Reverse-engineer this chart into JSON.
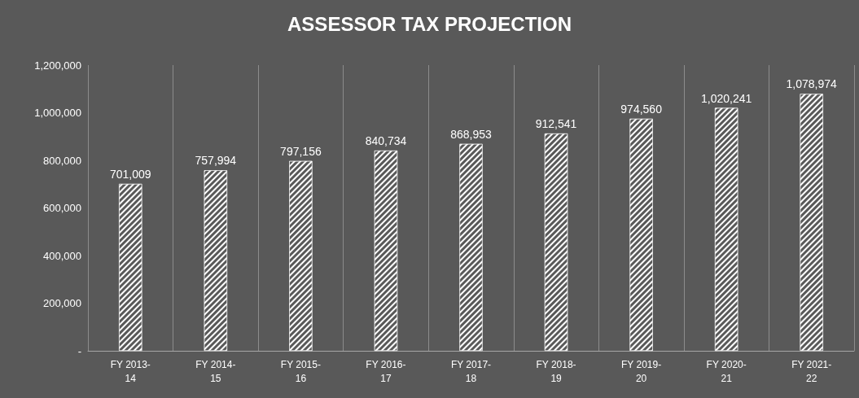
{
  "chart_data": {
    "type": "bar",
    "title": "ASSESSOR TAX PROJECTION",
    "categories": [
      "FY 2013-14",
      "FY 2014-15",
      "FY 2015-16",
      "FY 2016-17",
      "FY 2017-18",
      "FY 2018-19",
      "FY 2019-20",
      "FY 2020-21",
      "FY 2021-22"
    ],
    "values": [
      701009,
      757994,
      797156,
      840734,
      868953,
      912541,
      974560,
      1020241,
      1078974
    ],
    "color": "#ffffff",
    "ylim": [
      0,
      1200000
    ],
    "yticks": [
      {
        "value": 0,
        "label": "-"
      },
      {
        "value": 200000,
        "label": "200,000"
      },
      {
        "value": 400000,
        "label": "400,000"
      },
      {
        "value": 600000,
        "label": "600,000"
      },
      {
        "value": 800000,
        "label": "800,000"
      },
      {
        "value": 1000000,
        "label": "1,000,000"
      },
      {
        "value": 1200000,
        "label": "1,200,000"
      }
    ],
    "value_labels": [
      "701,009",
      "757,994",
      "797,156",
      "840,734",
      "868,953",
      "912,541",
      "974,560",
      "1,020,241",
      "1,078,974"
    ],
    "grid": "x"
  }
}
